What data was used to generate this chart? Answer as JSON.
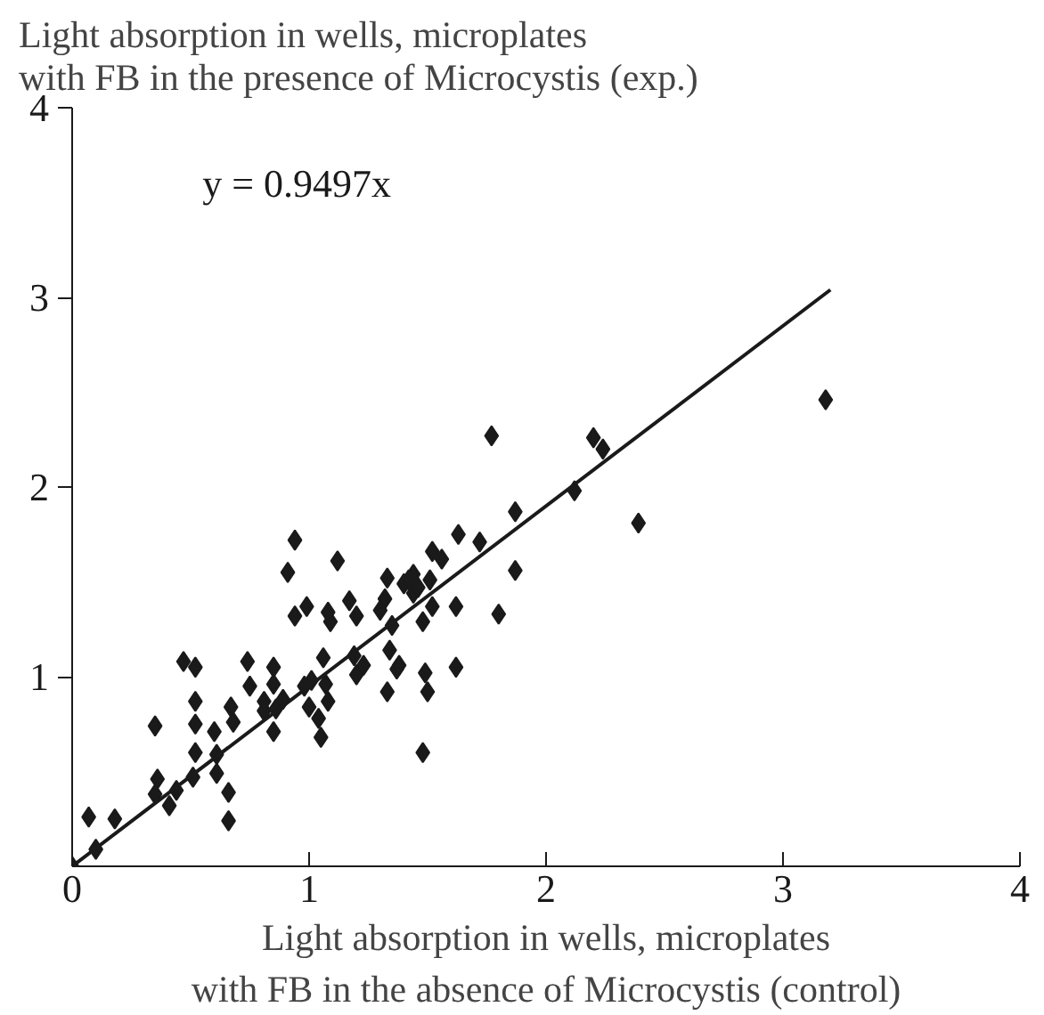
{
  "chart_data": {
    "type": "scatter",
    "title": "Light absorption in wells, microplates\nwith FB in the presence of Microcystis (exp.)",
    "xlabel": "Light absorption in wells, microplates\nwith FB in the absence of Microcystis (control)",
    "annotations": [
      "y = 0.9497x"
    ],
    "xlim": [
      0,
      4
    ],
    "ylim": [
      0,
      4
    ],
    "xticks": [
      0,
      1,
      2,
      3,
      4
    ],
    "yticks": [
      1,
      2,
      3,
      4
    ],
    "grid": false,
    "series": [
      {
        "marker": "diamond",
        "color": "#1a1a1a",
        "x": [
          0,
          0.1,
          0.07,
          0.18,
          0.35,
          0.36,
          0.35,
          0.41,
          0.44,
          0.47,
          0.52,
          0.52,
          0.52,
          0.51,
          0.52,
          0.6,
          0.61,
          0.61,
          0.67,
          0.68,
          0.66,
          0.66,
          0.74,
          0.75,
          0.81,
          0.81,
          0.85,
          0.85,
          0.86,
          0.85,
          0.89,
          0.91,
          0.94,
          0.94,
          0.99,
          0.98,
          1.01,
          1.0,
          1.04,
          1.05,
          1.06,
          1.07,
          1.08,
          1.08,
          1.09,
          1.12,
          1.17,
          1.2,
          1.19,
          1.2,
          1.23,
          1.32,
          1.3,
          1.33,
          1.34,
          1.33,
          1.35,
          1.37,
          1.38,
          1.4,
          1.42,
          1.44,
          1.44,
          1.46,
          1.48,
          1.49,
          1.5,
          1.48,
          1.51,
          1.52,
          1.52,
          1.56,
          1.62,
          1.62,
          1.63,
          1.72,
          1.8,
          1.87,
          1.77,
          1.87,
          2.2,
          2.24,
          2.12,
          2.39,
          3.18
        ],
        "values": [
          0,
          0.09,
          0.26,
          0.25,
          0.74,
          0.46,
          0.38,
          0.32,
          0.4,
          1.08,
          1.05,
          0.87,
          0.75,
          0.47,
          0.6,
          0.71,
          0.59,
          0.49,
          0.84,
          0.76,
          0.39,
          0.24,
          1.08,
          0.95,
          0.87,
          0.82,
          1.05,
          0.96,
          0.83,
          0.71,
          0.88,
          1.55,
          1.72,
          1.32,
          1.37,
          0.95,
          0.98,
          0.84,
          0.78,
          0.68,
          1.1,
          0.96,
          0.87,
          1.34,
          1.29,
          1.61,
          1.4,
          1.32,
          1.11,
          1.01,
          1.06,
          1.41,
          1.35,
          1.52,
          1.14,
          0.92,
          1.27,
          1.04,
          1.06,
          1.49,
          1.51,
          1.44,
          1.54,
          1.47,
          1.29,
          1.02,
          0.92,
          0.6,
          1.51,
          1.37,
          1.66,
          1.62,
          1.37,
          1.05,
          1.75,
          1.71,
          1.33,
          1.56,
          2.27,
          1.87,
          2.26,
          2.2,
          1.98,
          1.81,
          2.46
        ]
      },
      {
        "type": "line",
        "color": "#1a1a1a",
        "x": [
          0,
          3.2
        ],
        "values": [
          0,
          3.04
        ],
        "line_style": "solid"
      }
    ]
  }
}
